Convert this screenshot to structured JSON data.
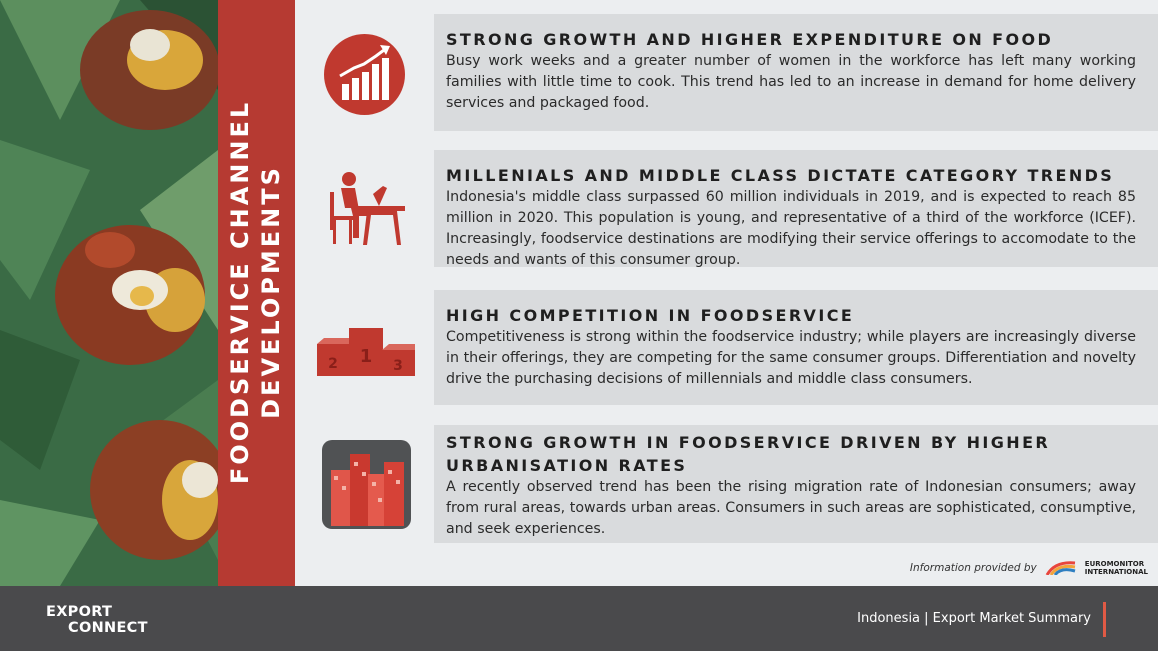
{
  "side_title": {
    "line1": "FOODSERVICE CHANNEL",
    "line2": "DEVELOPMENTS"
  },
  "sections": [
    {
      "icon": "growth-chart-icon",
      "title": "STRONG GROWTH AND HIGHER EXPENDITURE ON FOOD",
      "body": "Busy work weeks and a greater number of women in the workforce has left many working families with little time to cook. This trend has led to an increase in demand for home delivery services and packaged food."
    },
    {
      "icon": "person-at-desk-icon",
      "title": "MILLENIALS AND MIDDLE CLASS DICTATE CATEGORY TRENDS",
      "body": "Indonesia's middle class surpassed 60 million individuals in 2019, and is expected to reach 85 million in 2020. This population is young, and representative of a third of the workforce (ICEF). Increasingly, foodservice destinations are modifying their service offerings to accomodate to the needs and wants of this consumer group."
    },
    {
      "icon": "podium-icon",
      "title": "HIGH COMPETITION IN FOODSERVICE",
      "body": "Competitiveness is strong within the foodservice industry; while players are increasingly diverse in their offerings, they are competing for the same consumer groups. Differentiation and novelty drive the purchasing decisions of millennials and middle class consumers."
    },
    {
      "icon": "city-buildings-icon",
      "title": "STRONG GROWTH IN FOODSERVICE DRIVEN BY HIGHER URBANISATION RATES",
      "body": "A recently observed trend has been the rising migration rate of Indonesian consumers; away from rural areas, towards urban areas. Consumers in such areas are sophisticated, consumptive, and seek experiences."
    }
  ],
  "podium_numbers": [
    "1",
    "2",
    "3"
  ],
  "credit": {
    "text": "Information provided by",
    "logo_line1": "EUROMONITOR",
    "logo_line2": "INTERNATIONAL"
  },
  "footer": {
    "brand_line1": "EXPORT",
    "brand_line2": "CONNECT",
    "text": "Indonesia | Export Market Summary"
  },
  "colors": {
    "accent": "#b63a32",
    "card": "#d9dbdd",
    "footer": "#4a4a4c"
  }
}
